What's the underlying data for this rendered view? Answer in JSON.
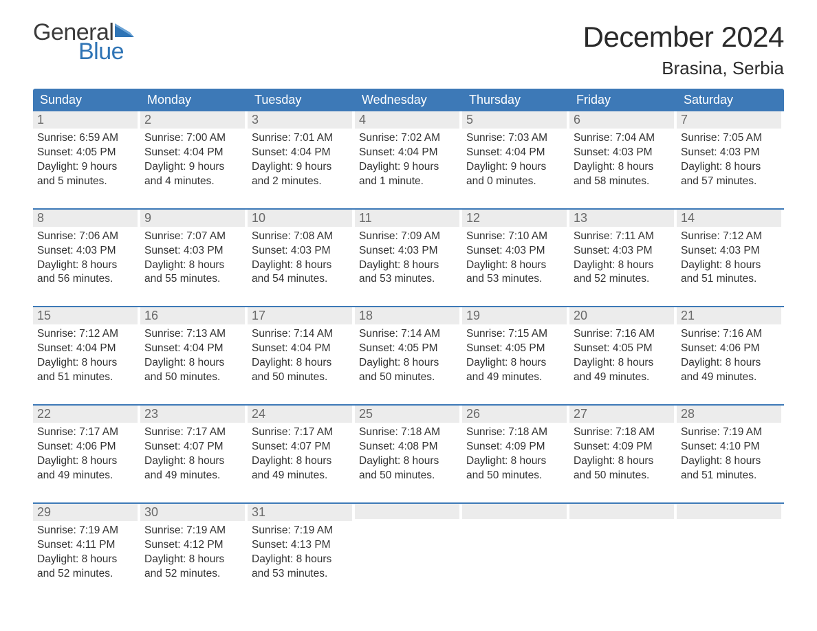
{
  "brand": {
    "part1": "General",
    "part2": "Blue",
    "flag_color": "#2f74b5"
  },
  "title": "December 2024",
  "location": "Brasina, Serbia",
  "colors": {
    "header_bg": "#3d79b7",
    "header_text": "#ffffff",
    "daynum_bg": "#ececec",
    "daynum_text": "#6a6a6a",
    "body_text": "#333333",
    "rule": "#3d79b7",
    "page_bg": "#ffffff"
  },
  "typography": {
    "title_fontsize": 42,
    "location_fontsize": 26,
    "dow_fontsize": 18,
    "daynum_fontsize": 18,
    "body_fontsize": 15.5
  },
  "days_of_week": [
    "Sunday",
    "Monday",
    "Tuesday",
    "Wednesday",
    "Thursday",
    "Friday",
    "Saturday"
  ],
  "labels": {
    "sunrise": "Sunrise: ",
    "sunset": "Sunset: ",
    "daylight": "Daylight: "
  },
  "weeks": [
    [
      {
        "n": "1",
        "sunrise": "6:59 AM",
        "sunset": "4:05 PM",
        "dl1": "9 hours",
        "dl2": "and 5 minutes."
      },
      {
        "n": "2",
        "sunrise": "7:00 AM",
        "sunset": "4:04 PM",
        "dl1": "9 hours",
        "dl2": "and 4 minutes."
      },
      {
        "n": "3",
        "sunrise": "7:01 AM",
        "sunset": "4:04 PM",
        "dl1": "9 hours",
        "dl2": "and 2 minutes."
      },
      {
        "n": "4",
        "sunrise": "7:02 AM",
        "sunset": "4:04 PM",
        "dl1": "9 hours",
        "dl2": "and 1 minute."
      },
      {
        "n": "5",
        "sunrise": "7:03 AM",
        "sunset": "4:04 PM",
        "dl1": "9 hours",
        "dl2": "and 0 minutes."
      },
      {
        "n": "6",
        "sunrise": "7:04 AM",
        "sunset": "4:03 PM",
        "dl1": "8 hours",
        "dl2": "and 58 minutes."
      },
      {
        "n": "7",
        "sunrise": "7:05 AM",
        "sunset": "4:03 PM",
        "dl1": "8 hours",
        "dl2": "and 57 minutes."
      }
    ],
    [
      {
        "n": "8",
        "sunrise": "7:06 AM",
        "sunset": "4:03 PM",
        "dl1": "8 hours",
        "dl2": "and 56 minutes."
      },
      {
        "n": "9",
        "sunrise": "7:07 AM",
        "sunset": "4:03 PM",
        "dl1": "8 hours",
        "dl2": "and 55 minutes."
      },
      {
        "n": "10",
        "sunrise": "7:08 AM",
        "sunset": "4:03 PM",
        "dl1": "8 hours",
        "dl2": "and 54 minutes."
      },
      {
        "n": "11",
        "sunrise": "7:09 AM",
        "sunset": "4:03 PM",
        "dl1": "8 hours",
        "dl2": "and 53 minutes."
      },
      {
        "n": "12",
        "sunrise": "7:10 AM",
        "sunset": "4:03 PM",
        "dl1": "8 hours",
        "dl2": "and 53 minutes."
      },
      {
        "n": "13",
        "sunrise": "7:11 AM",
        "sunset": "4:03 PM",
        "dl1": "8 hours",
        "dl2": "and 52 minutes."
      },
      {
        "n": "14",
        "sunrise": "7:12 AM",
        "sunset": "4:03 PM",
        "dl1": "8 hours",
        "dl2": "and 51 minutes."
      }
    ],
    [
      {
        "n": "15",
        "sunrise": "7:12 AM",
        "sunset": "4:04 PM",
        "dl1": "8 hours",
        "dl2": "and 51 minutes."
      },
      {
        "n": "16",
        "sunrise": "7:13 AM",
        "sunset": "4:04 PM",
        "dl1": "8 hours",
        "dl2": "and 50 minutes."
      },
      {
        "n": "17",
        "sunrise": "7:14 AM",
        "sunset": "4:04 PM",
        "dl1": "8 hours",
        "dl2": "and 50 minutes."
      },
      {
        "n": "18",
        "sunrise": "7:14 AM",
        "sunset": "4:05 PM",
        "dl1": "8 hours",
        "dl2": "and 50 minutes."
      },
      {
        "n": "19",
        "sunrise": "7:15 AM",
        "sunset": "4:05 PM",
        "dl1": "8 hours",
        "dl2": "and 49 minutes."
      },
      {
        "n": "20",
        "sunrise": "7:16 AM",
        "sunset": "4:05 PM",
        "dl1": "8 hours",
        "dl2": "and 49 minutes."
      },
      {
        "n": "21",
        "sunrise": "7:16 AM",
        "sunset": "4:06 PM",
        "dl1": "8 hours",
        "dl2": "and 49 minutes."
      }
    ],
    [
      {
        "n": "22",
        "sunrise": "7:17 AM",
        "sunset": "4:06 PM",
        "dl1": "8 hours",
        "dl2": "and 49 minutes."
      },
      {
        "n": "23",
        "sunrise": "7:17 AM",
        "sunset": "4:07 PM",
        "dl1": "8 hours",
        "dl2": "and 49 minutes."
      },
      {
        "n": "24",
        "sunrise": "7:17 AM",
        "sunset": "4:07 PM",
        "dl1": "8 hours",
        "dl2": "and 49 minutes."
      },
      {
        "n": "25",
        "sunrise": "7:18 AM",
        "sunset": "4:08 PM",
        "dl1": "8 hours",
        "dl2": "and 50 minutes."
      },
      {
        "n": "26",
        "sunrise": "7:18 AM",
        "sunset": "4:09 PM",
        "dl1": "8 hours",
        "dl2": "and 50 minutes."
      },
      {
        "n": "27",
        "sunrise": "7:18 AM",
        "sunset": "4:09 PM",
        "dl1": "8 hours",
        "dl2": "and 50 minutes."
      },
      {
        "n": "28",
        "sunrise": "7:19 AM",
        "sunset": "4:10 PM",
        "dl1": "8 hours",
        "dl2": "and 51 minutes."
      }
    ],
    [
      {
        "n": "29",
        "sunrise": "7:19 AM",
        "sunset": "4:11 PM",
        "dl1": "8 hours",
        "dl2": "and 52 minutes."
      },
      {
        "n": "30",
        "sunrise": "7:19 AM",
        "sunset": "4:12 PM",
        "dl1": "8 hours",
        "dl2": "and 52 minutes."
      },
      {
        "n": "31",
        "sunrise": "7:19 AM",
        "sunset": "4:13 PM",
        "dl1": "8 hours",
        "dl2": "and 53 minutes."
      },
      null,
      null,
      null,
      null
    ]
  ]
}
